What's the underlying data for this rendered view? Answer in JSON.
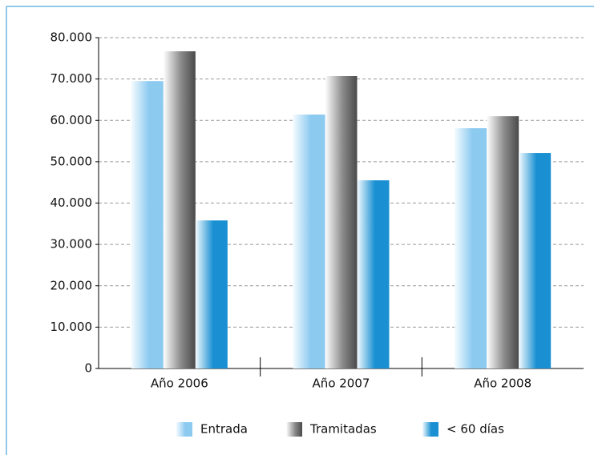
{
  "chart_data": {
    "type": "bar",
    "categories": [
      "Año 2006",
      "Año 2007",
      "Año 2008"
    ],
    "series": [
      {
        "name": "Entrada",
        "color": "#8ccaf0",
        "values": [
          69500,
          61400,
          58100
        ]
      },
      {
        "name": "Tramitadas",
        "color": "#8a8a8a",
        "values": [
          76700,
          70700,
          61000
        ]
      },
      {
        "name": "< 60 días",
        "color": "#1a90d2",
        "values": [
          35800,
          45500,
          52100
        ]
      }
    ],
    "ylim": [
      0,
      80000
    ],
    "yticks": [
      0,
      {
        "value": 10000,
        "label": "10.000"
      },
      {
        "value": 20000,
        "label": "20.000"
      },
      {
        "value": 30000,
        "label": "30.000"
      },
      {
        "value": 40000,
        "label": "40.000"
      },
      {
        "value": 50000,
        "label": "50.000"
      },
      {
        "value": 60000,
        "label": "60.000"
      },
      {
        "value": 70000,
        "label": "70.000"
      },
      {
        "value": 80000,
        "label": "80.000"
      }
    ],
    "grid": true,
    "legend": "bottom"
  }
}
